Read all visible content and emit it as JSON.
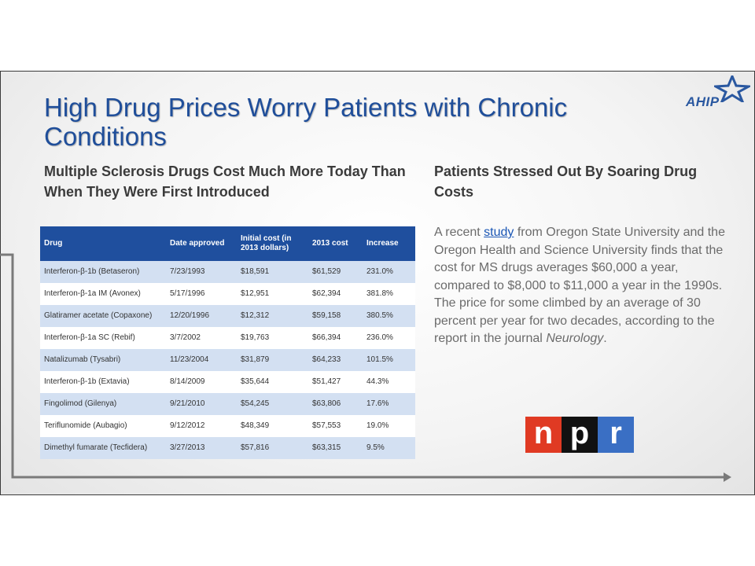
{
  "slide": {
    "title": "High Drug Prices Worry Patients with Chronic Conditions",
    "logo_text": "AHIP",
    "left_heading": "Multiple Sclerosis Drugs Cost Much More Today Than When They Were First Introduced",
    "right_heading": "Patients Stressed Out By Soaring Drug Costs",
    "body": {
      "before_link": "A recent ",
      "link_text": "study",
      "after_link": " from Oregon State University and the Oregon Health and Science University finds that the cost for MS drugs averages $60,000 a year, compared to $8,000 to $11,000 a year in the 1990s. The price for some climbed by an average of 30 percent per year for two decades, according to the report in the journal ",
      "journal": "Neurology",
      "end": "."
    }
  },
  "table": {
    "headers": [
      "Drug",
      "Date approved",
      "Initial cost (in 2013 dollars)",
      "2013 cost",
      "Increase"
    ],
    "rows": [
      [
        "Interferon-β-1b (Betaseron)",
        "7/23/1993",
        "$18,591",
        "$61,529",
        "231.0%"
      ],
      [
        "Interferon-β-1a IM (Avonex)",
        "5/17/1996",
        "$12,951",
        "$62,394",
        "381.8%"
      ],
      [
        "Glatiramer acetate (Copaxone)",
        "12/20/1996",
        "$12,312",
        "$59,158",
        "380.5%"
      ],
      [
        "Interferon-β-1a SC (Rebif)",
        "3/7/2002",
        "$19,763",
        "$66,394",
        "236.0%"
      ],
      [
        "Natalizumab (Tysabri)",
        "11/23/2004",
        "$31,879",
        "$64,233",
        "101.5%"
      ],
      [
        "Interferon-β-1b (Extavia)",
        "8/14/2009",
        "$35,644",
        "$51,427",
        "44.3%"
      ],
      [
        "Fingolimod (Gilenya)",
        "9/21/2010",
        "$54,245",
        "$63,806",
        "17.6%"
      ],
      [
        "Teriflunomide (Aubagio)",
        "9/12/2012",
        "$48,349",
        "$57,553",
        "19.0%"
      ],
      [
        "Dimethyl fumarate (Tecfidera)",
        "3/27/2013",
        "$57,816",
        "$63,315",
        "9.5%"
      ]
    ]
  },
  "npr_logo": {
    "letters": [
      "n",
      "p",
      "r"
    ],
    "colors": [
      "#e03a23",
      "#111111",
      "#3a6fc4"
    ]
  },
  "colors": {
    "title": "#1f4e9a",
    "table_header": "#1f4f9e",
    "table_stripe": "#d3e0f2",
    "connector": "#7a7a7a"
  },
  "icons": {
    "logo_mark": "star-icon",
    "connector": "arrow-right-icon"
  }
}
